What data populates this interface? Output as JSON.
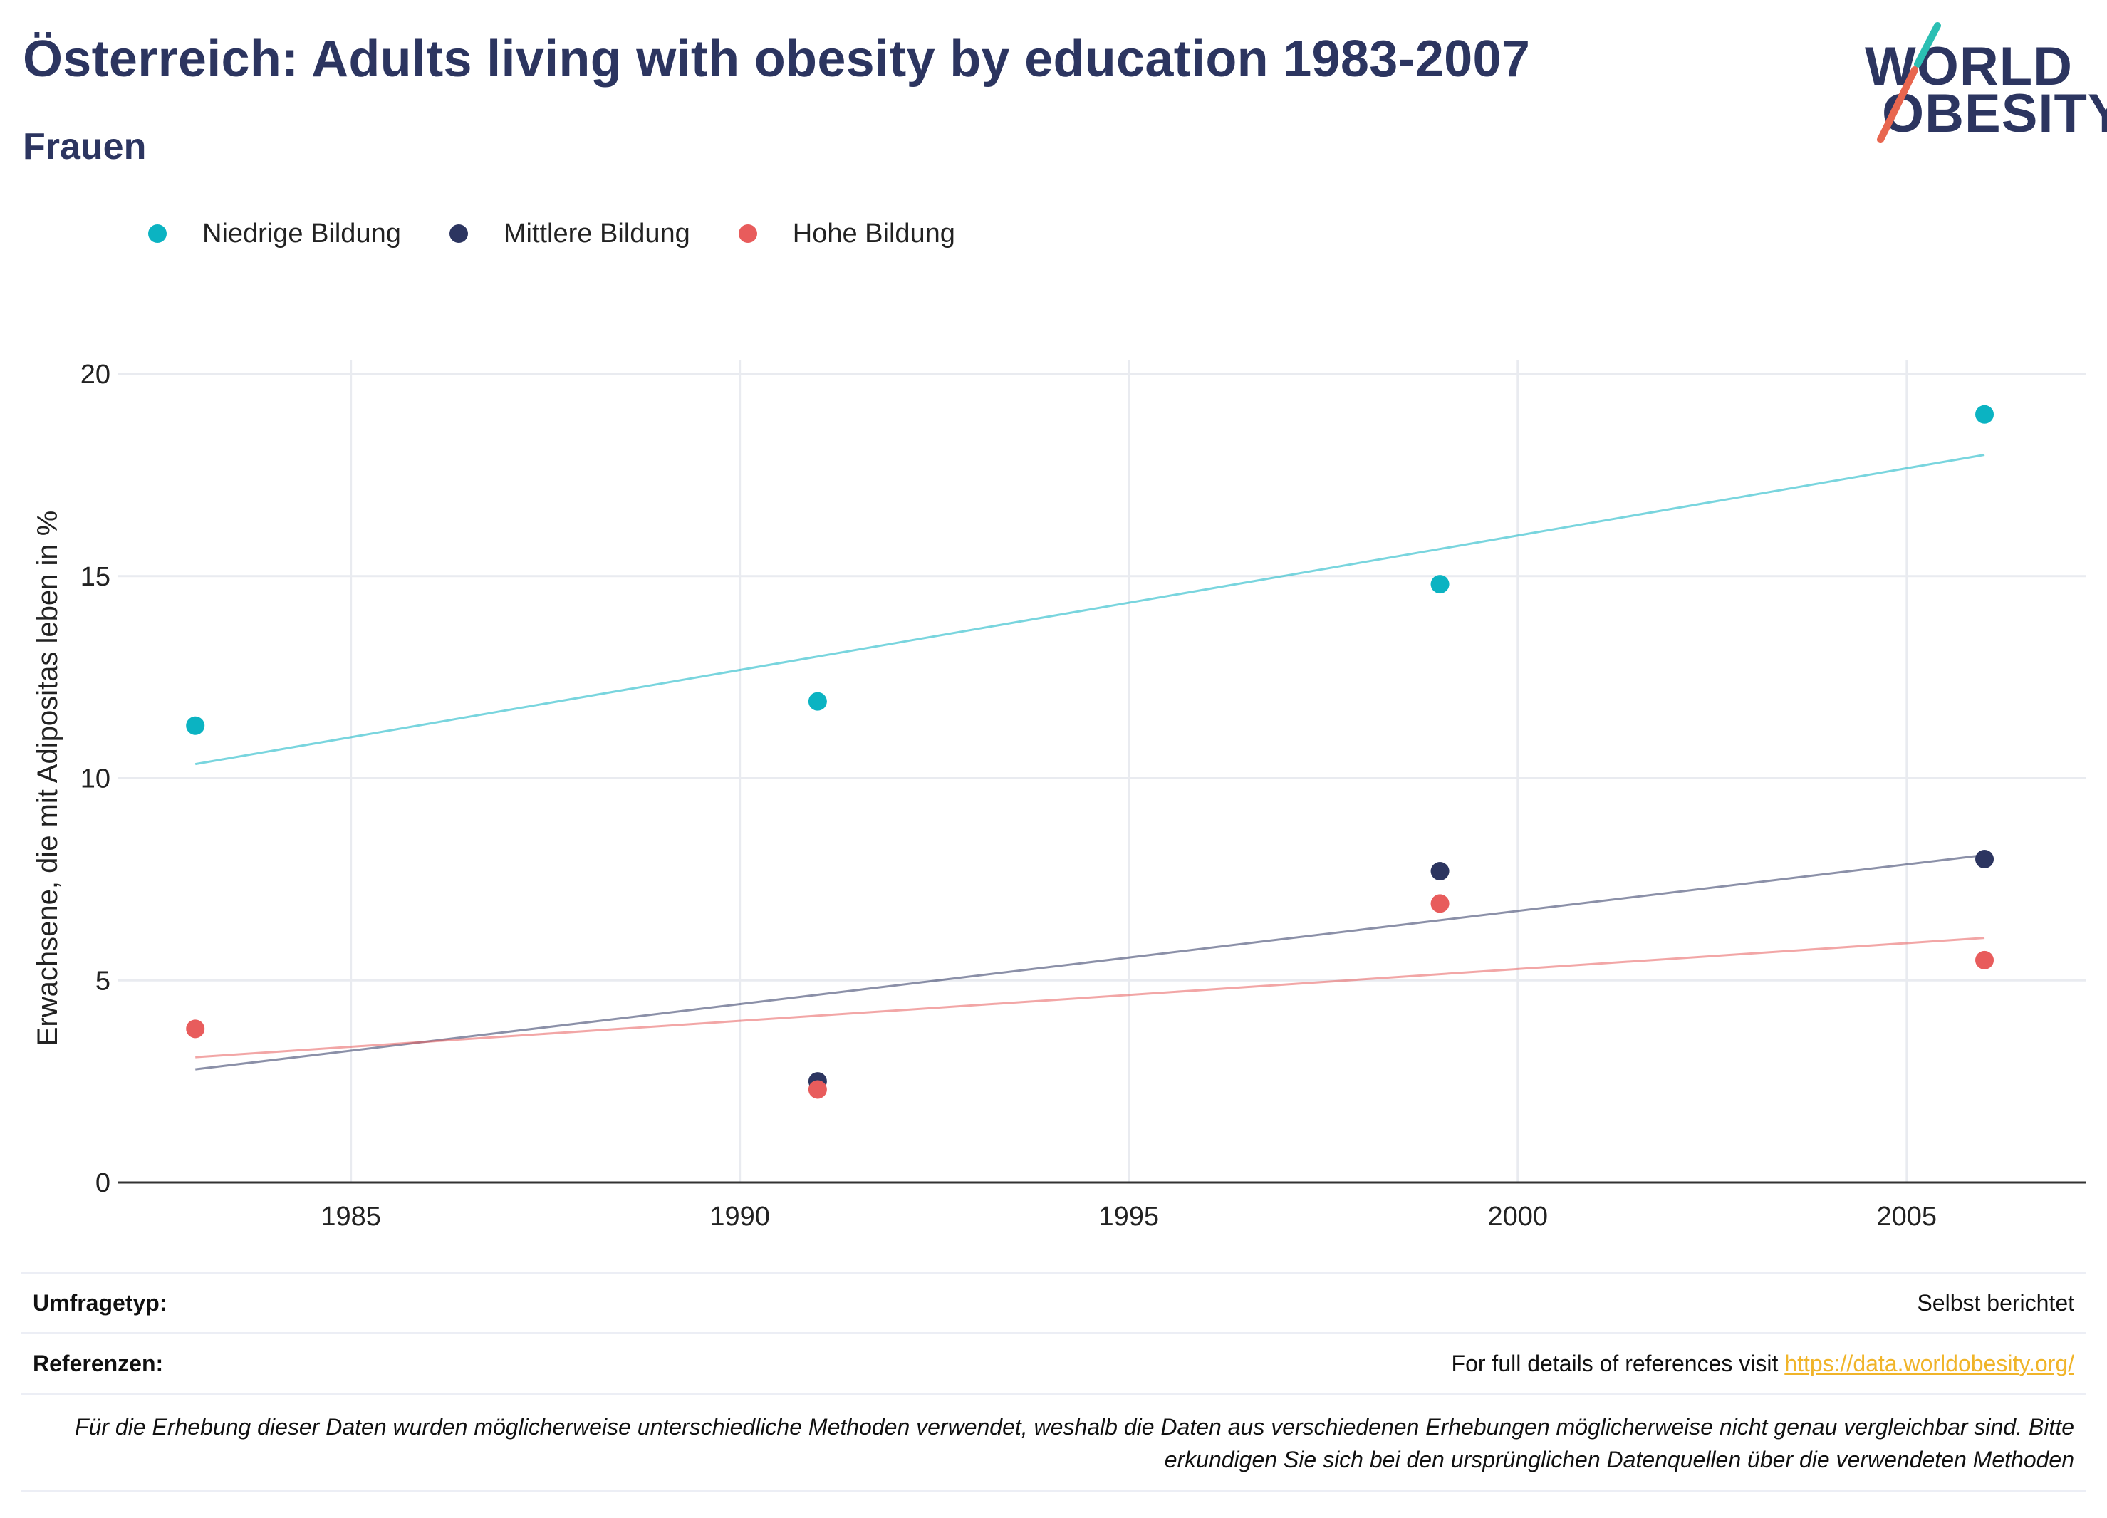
{
  "header": {
    "title": "Österreich: Adults living with obesity by education 1983-2007",
    "subtitle": "Frauen"
  },
  "logo": {
    "line1": "WORLD",
    "line2": "OBESITY"
  },
  "colors": {
    "niedrig": "#0bb3c2",
    "mittel": "#2c3560",
    "hoch": "#e85c5c",
    "title": "#2c3560",
    "link": "#f0b429"
  },
  "chart_data": {
    "type": "scatter",
    "xlim": [
      1982,
      2007.3
    ],
    "ylim": [
      0,
      20
    ],
    "xticks": [
      1985,
      1990,
      1995,
      2000,
      2005
    ],
    "yticks": [
      0,
      5,
      10,
      15,
      20
    ],
    "xlabel": "",
    "ylabel": "Erwachsene, die mit Adipositas leben in %",
    "grid": true,
    "legend_position": "top-left",
    "series": [
      {
        "name": "Niedrige Bildung",
        "color": "#0bb3c2",
        "x": [
          1983,
          1991,
          1999,
          2006
        ],
        "y": [
          11.3,
          11.9,
          14.8,
          19.0
        ],
        "trend": [
          [
            1983,
            10.35
          ],
          [
            2006,
            18.0
          ]
        ]
      },
      {
        "name": "Mittlere Bildung",
        "color": "#2c3560",
        "x": [
          1991,
          1999,
          2006
        ],
        "y": [
          2.5,
          7.7,
          8.0
        ],
        "trend": [
          [
            1983,
            2.8
          ],
          [
            2006,
            8.1
          ]
        ]
      },
      {
        "name": "Hohe Bildung",
        "color": "#e85c5c",
        "x": [
          1983,
          1991,
          1999,
          2006
        ],
        "y": [
          3.8,
          2.3,
          6.9,
          5.5
        ],
        "trend": [
          [
            1983,
            3.1
          ],
          [
            2006,
            6.05
          ]
        ]
      }
    ]
  },
  "footer": {
    "survey_label": "Umfragetyp:",
    "survey_value": "Selbst berichtet",
    "ref_label": "Referenzen:",
    "ref_text": "For full details of references visit ",
    "ref_link": "https://data.worldobesity.org/",
    "note": "Für die Erhebung dieser Daten wurden möglicherweise unterschiedliche Methoden verwendet, weshalb die Daten aus verschiedenen Erhebungen möglicherweise nicht genau vergleichbar sind. Bitte erkundigen Sie sich bei den ursprünglichen Datenquellen über die verwendeten Methoden"
  }
}
